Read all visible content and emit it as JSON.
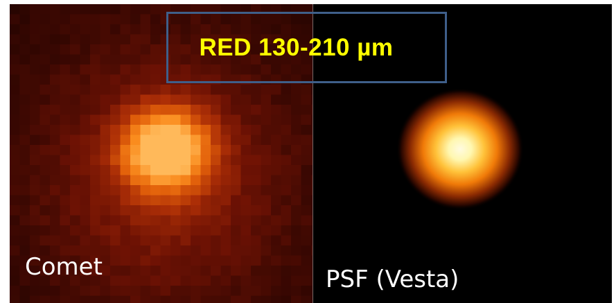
{
  "band_label": "RED 130-210 µm",
  "panels": [
    {
      "caption": "Comet"
    },
    {
      "caption": "PSF (Vesta)"
    }
  ],
  "colors": {
    "box_border": "#3f5f8a",
    "band_label": "#ffff00",
    "caption": "#ffffff",
    "background_left": "#250400",
    "background_right": "#000000"
  }
}
